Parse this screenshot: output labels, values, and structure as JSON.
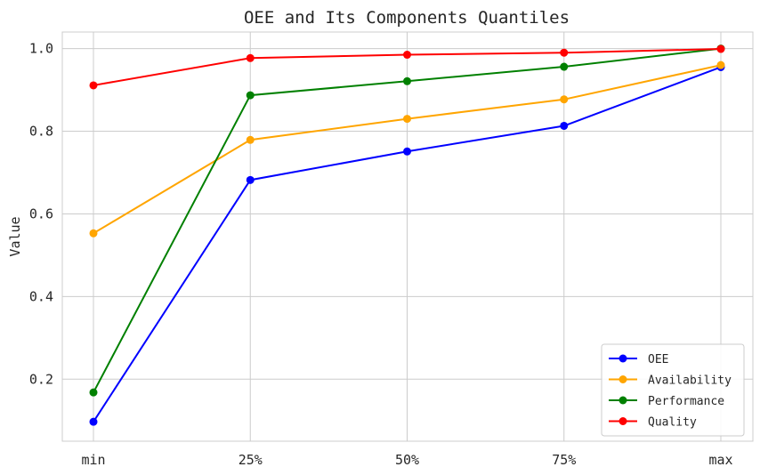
{
  "chart_data": {
    "type": "line",
    "title": "OEE and Its Components Quantiles",
    "xlabel": "",
    "ylabel": "Value",
    "categories": [
      "min",
      "25%",
      "50%",
      "75%",
      "max"
    ],
    "ylim": [
      0.05,
      1.04
    ],
    "yticks": [
      "0.2",
      "0.4",
      "0.6",
      "0.8",
      "1.0"
    ],
    "grid": true,
    "legend_position": "bottom-right",
    "series": [
      {
        "name": "OEE",
        "color": "#0000ff",
        "values": [
          0.097,
          0.682,
          0.751,
          0.813,
          0.955
        ]
      },
      {
        "name": "Availability",
        "color": "#ffa500",
        "values": [
          0.553,
          0.779,
          0.83,
          0.877,
          0.96
        ]
      },
      {
        "name": "Performance",
        "color": "#008000",
        "values": [
          0.168,
          0.887,
          0.921,
          0.956,
          1.0
        ]
      },
      {
        "name": "Quality",
        "color": "#ff0000",
        "values": [
          0.911,
          0.977,
          0.985,
          0.99,
          0.999
        ]
      }
    ]
  }
}
